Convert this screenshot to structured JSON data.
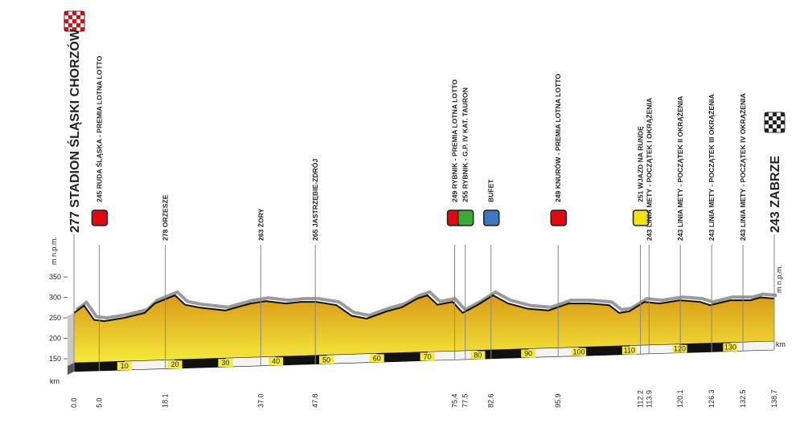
{
  "chart_data": {
    "type": "area",
    "y_label": "m n.p.m.",
    "x_label": "km",
    "ylim": [
      150,
      350
    ],
    "yticks": [
      150,
      200,
      250,
      300,
      350
    ],
    "xlim": [
      0,
      138.7
    ],
    "xticks": [
      10,
      20,
      30,
      40,
      50,
      60,
      70,
      80,
      90,
      100,
      110,
      120,
      130
    ],
    "colors": {
      "fill_top": "#d99a16",
      "fill_bottom": "#f6ea3c",
      "line": "#111111",
      "shadow": "#9a9a9a"
    },
    "x": [
      0,
      2,
      4,
      6,
      10,
      14,
      16,
      20,
      22,
      25,
      30,
      35,
      38,
      42,
      45,
      48,
      52,
      55,
      58,
      62,
      65,
      68,
      70,
      72,
      75,
      77,
      80,
      83,
      86,
      90,
      94,
      98,
      102,
      106,
      108,
      110,
      113,
      116,
      120,
      124,
      126,
      130,
      134,
      136,
      138.7
    ],
    "values": [
      262,
      280,
      245,
      242,
      250,
      262,
      285,
      305,
      282,
      275,
      268,
      285,
      291,
      285,
      289,
      289,
      281,
      255,
      248,
      266,
      276,
      297,
      305,
      282,
      289,
      262,
      282,
      305,
      285,
      272,
      268,
      285,
      285,
      281,
      262,
      266,
      289,
      285,
      293,
      289,
      281,
      293,
      293,
      300,
      297
    ],
    "waypoints": [
      {
        "km": {
          "value": 0,
          "label": "0.0"
        },
        "label": "277 STADION ŚLĄSKI CHORZÓW",
        "icon": "checkered",
        "icon_color": "#e30613"
      },
      {
        "km": {
          "value": 5,
          "label": "5.0"
        },
        "label": "245 RUDA ŚLĄSKA - PREMIA LOTNA LOTTO",
        "icon": "square",
        "icon_color": "#e30613"
      },
      {
        "km": {
          "value": 18.1,
          "label": "18.1"
        },
        "label": "278 ORZESZE"
      },
      {
        "km": {
          "value": 37,
          "label": "37.0"
        },
        "label": "263 ŻORY"
      },
      {
        "km": {
          "value": 47.8,
          "label": "47.8"
        },
        "label": "265 JASTRZĘBIE-ZDRÓJ"
      },
      {
        "km": {
          "value": 75.4,
          "label": "75.4"
        },
        "label": "249 RYBNIK - PREMIA LOTNA LOTTO",
        "icon": "square",
        "icon_color": "#e30613"
      },
      {
        "km": {
          "value": 77.5,
          "label": "77.5"
        },
        "label": "255 RYBNIK - G.P. IV KAT. TAURON",
        "icon": "square",
        "icon_color": "#3aaa35"
      },
      {
        "km": {
          "value": 82.6,
          "label": "82.6"
        },
        "label": "BUFET",
        "icon": "square",
        "icon_color": "#3b78c4"
      },
      {
        "km": {
          "value": 95.9,
          "label": "95.9"
        },
        "label": "249 KNURÓW - PREMIA LOTNA LOTTO",
        "icon": "square",
        "icon_color": "#e30613"
      },
      {
        "km": {
          "value": 112.2,
          "label": "112.2"
        },
        "label": "251 WJAZD NA RUNDĘ",
        "icon": "square",
        "icon_color": "#f2e313"
      },
      {
        "km": {
          "value": 113.9,
          "label": "113.9"
        },
        "label": "243 LINIA METY - POCZĄTEK I OKRĄŻENIA"
      },
      {
        "km": {
          "value": 120.1,
          "label": "120.1"
        },
        "label": "243 LINIA METY - POCZĄTEK II OKRĄŻENIA"
      },
      {
        "km": {
          "value": 126.3,
          "label": "126.3"
        },
        "label": "243 LINIA METY - POCZĄTEK III OKRĄŻENIA"
      },
      {
        "km": {
          "value": 132.5,
          "label": "132.5"
        },
        "label": "243 LINIA METY - POCZĄTEK IV OKRĄŻENIA"
      },
      {
        "km": {
          "value": 138.7,
          "label": "138.7"
        },
        "label": "243 ZABRZE",
        "icon": "checkered",
        "icon_color": "#222222"
      }
    ]
  }
}
